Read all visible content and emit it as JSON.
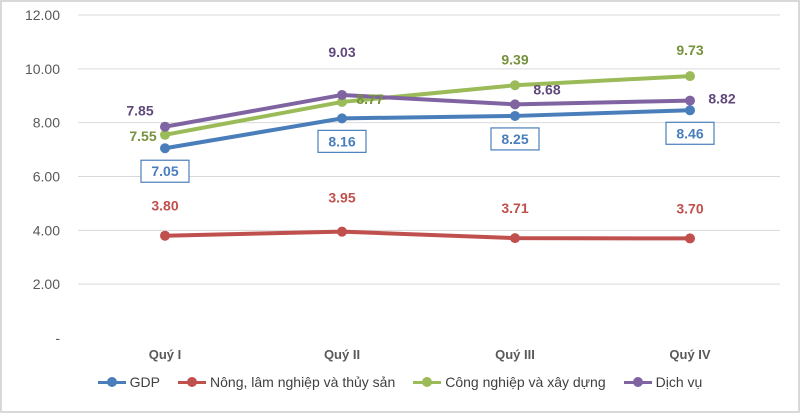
{
  "chart_data": {
    "type": "line",
    "categories": [
      "Quý I",
      "Quý II",
      "Quý III",
      "Quý IV"
    ],
    "y_ticks": [
      "-",
      "2.00",
      "4.00",
      "6.00",
      "8.00",
      "10.00",
      "12.00"
    ],
    "ylim": [
      0,
      12
    ],
    "grid": true,
    "legend_position": "bottom",
    "series": [
      {
        "name": "GDP",
        "color": "#4a7ebb",
        "values": [
          7.05,
          8.16,
          8.25,
          8.46
        ],
        "labels": [
          "7.05",
          "8.16",
          "8.25",
          "8.46"
        ]
      },
      {
        "name": "Nông, lâm nghiệp và thủy sản",
        "color": "#c0504d",
        "values": [
          3.8,
          3.95,
          3.71,
          3.7
        ],
        "labels": [
          "3.80",
          "3.95",
          "3.71",
          "3.70"
        ]
      },
      {
        "name": "Công nghiệp và xây dựng",
        "color": "#9bbb59",
        "values": [
          7.55,
          8.77,
          9.39,
          9.73
        ],
        "labels": [
          "7.55",
          "8.77",
          "9.39",
          "9.73"
        ]
      },
      {
        "name": "Dịch vụ",
        "color": "#8064a2",
        "values": [
          7.85,
          9.03,
          8.68,
          8.82
        ],
        "labels": [
          "7.85",
          "9.03",
          "8.68",
          "8.82"
        ]
      }
    ]
  }
}
